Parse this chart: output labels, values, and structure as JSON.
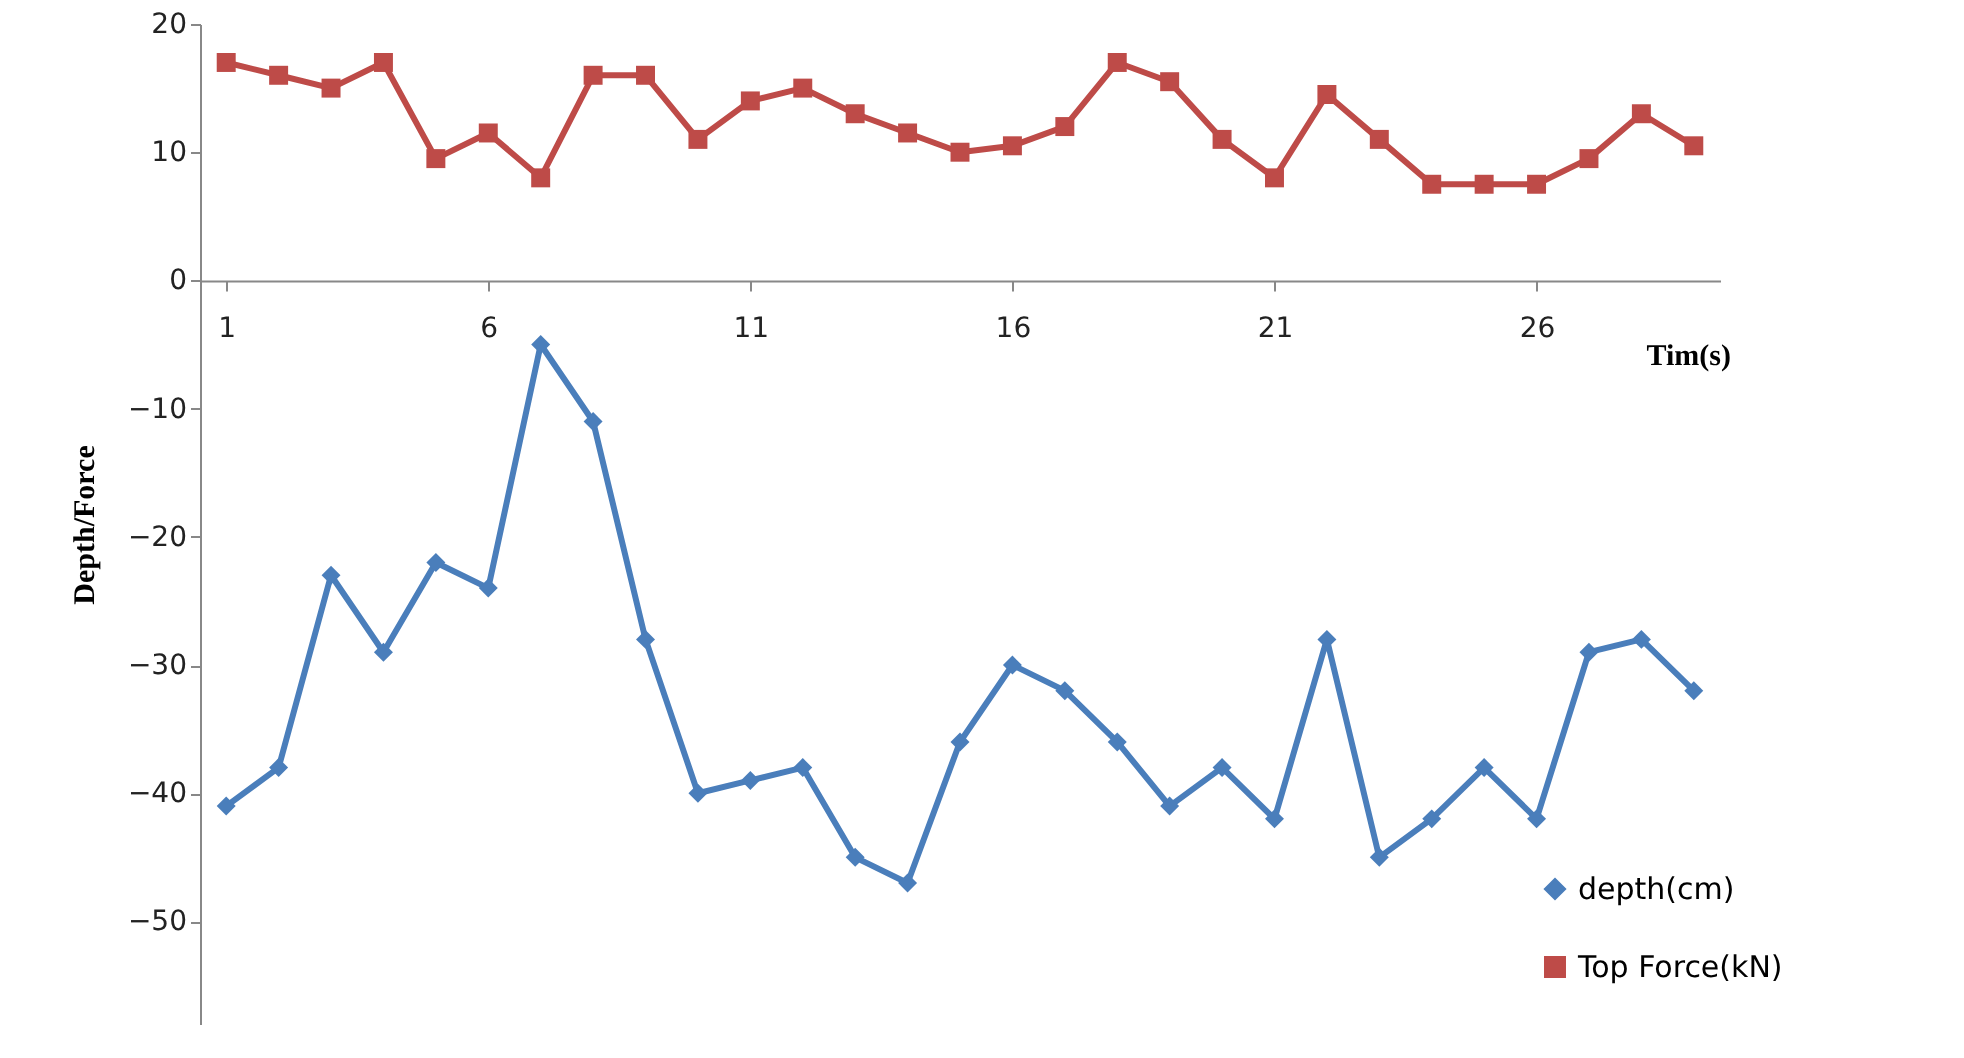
{
  "chart_data": {
    "type": "line",
    "xlabel": "Tim(s)",
    "ylabel": "Depth/Force",
    "categories": [
      "1",
      null,
      null,
      null,
      null,
      "6",
      null,
      null,
      null,
      null,
      "11",
      null,
      null,
      null,
      null,
      "16",
      null,
      null,
      null,
      null,
      "21",
      null,
      null,
      null,
      null,
      "26",
      null,
      null,
      null
    ],
    "series": [
      {
        "name": "depth(cm)",
        "color": "#4a7ebb",
        "marker": "diamond",
        "values": [
          -41,
          -38,
          -23,
          -29,
          -22,
          -24,
          -5,
          -11,
          -28,
          -40,
          -39,
          -38,
          -45,
          -47,
          -36,
          -30,
          -32,
          -36,
          -41,
          -38,
          -42,
          -28,
          -45,
          -42,
          -38,
          -42,
          -29,
          -28,
          -32
        ]
      },
      {
        "name": "Top Force(kN)",
        "color": "#be4b48",
        "marker": "square",
        "values": [
          17,
          16,
          15,
          17,
          9.5,
          11.5,
          8,
          16,
          16,
          11,
          14,
          15,
          13,
          11.5,
          10,
          10.5,
          12,
          17,
          15.5,
          11,
          8,
          14.5,
          11,
          7.5,
          7.5,
          7.5,
          9.5,
          13,
          10.5
        ]
      }
    ],
    "ylim": [
      -58,
      20
    ],
    "yticks": [
      -50,
      -40,
      -30,
      -20,
      -10,
      0,
      10,
      20
    ],
    "grid": false,
    "legend": "bottom right",
    "line_style": "solid"
  }
}
